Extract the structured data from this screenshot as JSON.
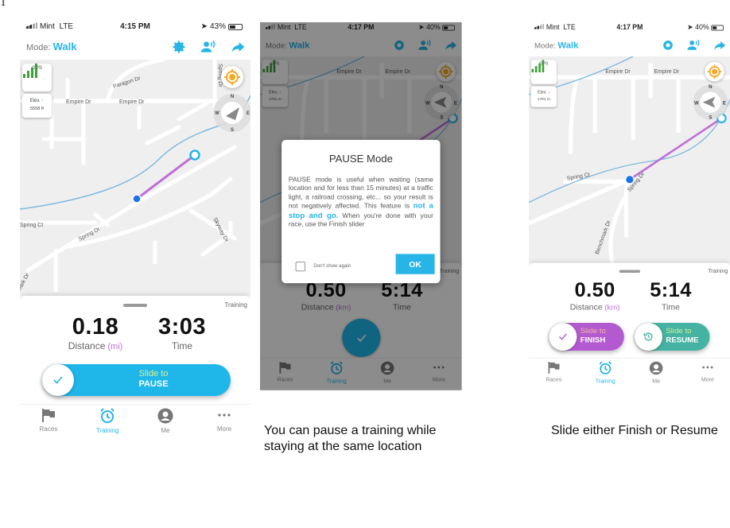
{
  "page_marker": "1",
  "phones": [
    {
      "status": {
        "carrier": "Mint",
        "network": "LTE",
        "time": "4:15 PM",
        "battery": "43%"
      },
      "header": {
        "mode_label": "Mode:",
        "mode_value": "Walk"
      },
      "map": {
        "gps_label": "GPS",
        "elev_label": "Elev.",
        "elev_value": "5558 ft",
        "compass": {
          "n": "N",
          "w": "W",
          "e": "E",
          "s": "S"
        },
        "streets": [
          "Paragon Dr",
          "Spring Dr",
          "Empire Dr",
          "Empire Dr",
          "Spring Ct",
          "Spring Dr",
          "Skyway Dr",
          "mark Dr"
        ]
      },
      "panel": {
        "tag": "Training",
        "distance": "0.18",
        "distance_label": "Distance",
        "distance_unit": "(mi)",
        "time": "3:03",
        "time_label": "Time"
      },
      "slider": {
        "prefix": "Slide to",
        "action": "PAUSE"
      }
    },
    {
      "status": {
        "carrier": "Mint",
        "network": "LTE",
        "time": "4:17 PM",
        "battery": "40%"
      },
      "header": {
        "mode_label": "Mode:",
        "mode_value": "Walk"
      },
      "map": {
        "gps_label": "GPS",
        "elev_label": "Elev.",
        "elev_value": "1701 m",
        "compass": {
          "n": "N",
          "w": "W",
          "e": "E",
          "s": "S"
        },
        "streets": [
          "Empire Dr",
          "Empire Dr"
        ]
      },
      "panel": {
        "tag": "Training",
        "distance": "0.50",
        "distance_label": "Distance",
        "distance_unit": "(km)",
        "time": "5:14",
        "time_label": "Time"
      }
    },
    {
      "status": {
        "carrier": "Mint",
        "network": "LTE",
        "time": "4:17 PM",
        "battery": "40%"
      },
      "header": {
        "mode_label": "Mode:",
        "mode_value": "Walk"
      },
      "map": {
        "gps_label": "GPS",
        "elev_label": "Elev.",
        "elev_value": "1701 m",
        "compass": {
          "n": "N",
          "w": "W",
          "e": "E",
          "s": "S"
        },
        "streets": [
          "Empire Dr",
          "Empire Dr",
          "Spring Ct",
          "Spring Dr",
          "Benchmark Dr"
        ]
      },
      "panel": {
        "tag": "Training",
        "distance": "0.50",
        "distance_label": "Distance",
        "distance_unit": "(km)",
        "time": "5:14",
        "time_label": "Time"
      },
      "finish_slider": {
        "prefix": "Slide to",
        "action": "FINISH"
      },
      "resume_slider": {
        "prefix": "Slide to",
        "action": "RESUME"
      }
    }
  ],
  "tabs": [
    {
      "label": "Races",
      "icon": "flag-icon"
    },
    {
      "label": "Training",
      "icon": "alarm-clock-icon",
      "active": true
    },
    {
      "label": "Me",
      "icon": "user-circle-icon"
    },
    {
      "label": "More",
      "icon": "more-dots-icon"
    }
  ],
  "dialog": {
    "title": "PAUSE Mode",
    "body_before": "PAUSE mode is useful when waiting (same location and for less than 15 minutes) at a traffic light, a railroad crossing, etc... so your result is not negatively affected. This feature is ",
    "body_emphasis": "not a stop and go.",
    "body_after": " When you're done with your race, use the Finish slider",
    "checkbox_label": "Don't show again",
    "ok_label": "OK"
  },
  "captions": [
    "You can pause a training while staying at the same location",
    "Slide either Finish or Resume"
  ],
  "colors": {
    "accent": "#27b4e6",
    "route": "#c070d8",
    "finish": "#b45ad0",
    "resume": "#45b3a3",
    "locate": "#f5a623",
    "gps": "#3aa13a",
    "river": "#7fb8dc"
  }
}
